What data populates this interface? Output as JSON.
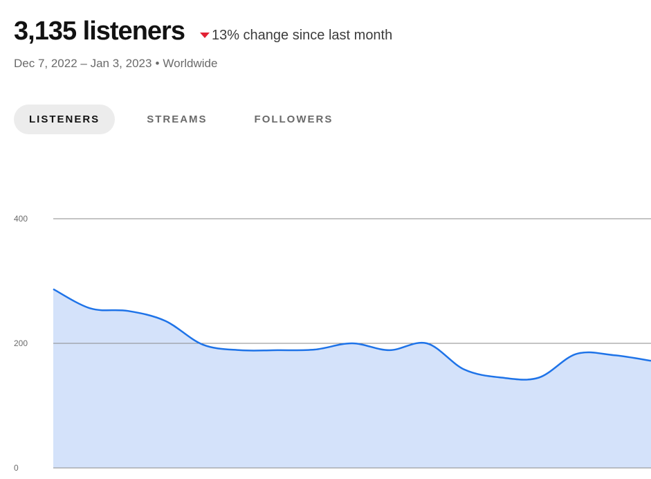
{
  "header": {
    "count": "3,135 listeners",
    "change": "13% change since last month",
    "change_direction": "down",
    "change_color": "#e22134",
    "date_range": "Dec 7, 2022 – Jan 3, 2023",
    "separator": "•",
    "region": "Worldwide"
  },
  "tabs": [
    {
      "label": "LISTENERS",
      "active": true
    },
    {
      "label": "STREAMS",
      "active": false
    },
    {
      "label": "FOLLOWERS",
      "active": false
    }
  ],
  "chart_data": {
    "type": "area",
    "y_ticks": [
      "400",
      "200",
      "0"
    ],
    "ylim": [
      0,
      400
    ],
    "grid": true,
    "line_color": "#1e73e8",
    "fill_color": "#d4e2fa",
    "values": [
      287,
      256,
      252,
      236,
      198,
      189,
      189,
      190,
      200,
      189,
      200,
      158,
      145,
      145,
      183,
      181,
      172
    ]
  }
}
